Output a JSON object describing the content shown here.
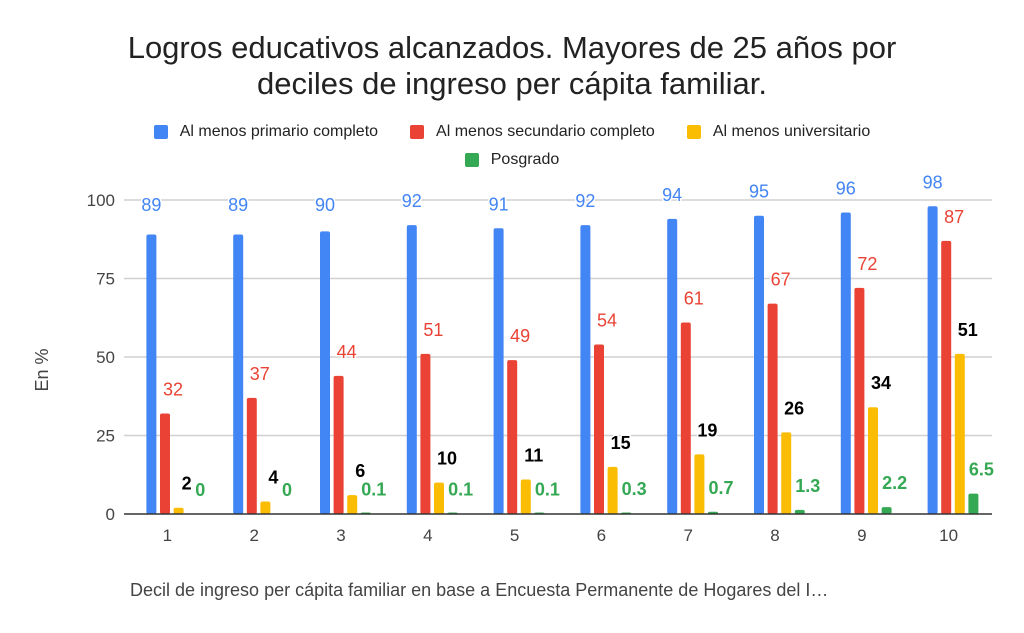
{
  "chart_data": {
    "type": "bar",
    "title": "Logros educativos alcanzados. Mayores de 25 años por deciles de ingreso per cápita familiar.",
    "title_lines": [
      "Logros educativos alcanzados. Mayores de 25 años por",
      "deciles de ingreso per cápita familiar."
    ],
    "xlabel": "Decil de ingreso per cápita familiar en base a Encuesta Permanente de Hogares del I…",
    "ylabel": "En %",
    "ylim": [
      0,
      100
    ],
    "yticks": [
      0,
      25,
      50,
      75,
      100
    ],
    "grid": true,
    "legend_position": "top",
    "categories": [
      "1",
      "2",
      "3",
      "4",
      "5",
      "6",
      "7",
      "8",
      "9",
      "10"
    ],
    "series": [
      {
        "name": "Al menos primario completo",
        "color": "#4285f4",
        "label_color": "#4285f4",
        "values": [
          89,
          89,
          90,
          92,
          91,
          92,
          94,
          95,
          96,
          98
        ]
      },
      {
        "name": "Al menos secundario completo",
        "color": "#ea4335",
        "label_color": "#ea4335",
        "values": [
          32,
          37,
          44,
          51,
          49,
          54,
          61,
          67,
          72,
          87
        ]
      },
      {
        "name": "Al menos universitario",
        "color": "#fbbc04",
        "label_color": "#000000",
        "values": [
          2,
          4,
          6,
          10,
          11,
          15,
          19,
          26,
          34,
          51
        ]
      },
      {
        "name": "Posgrado",
        "color": "#34a853",
        "label_color": "#34a853",
        "values": [
          0,
          0,
          0.1,
          0.1,
          0.1,
          0.3,
          0.7,
          1.3,
          2.2,
          6.5
        ]
      }
    ]
  }
}
